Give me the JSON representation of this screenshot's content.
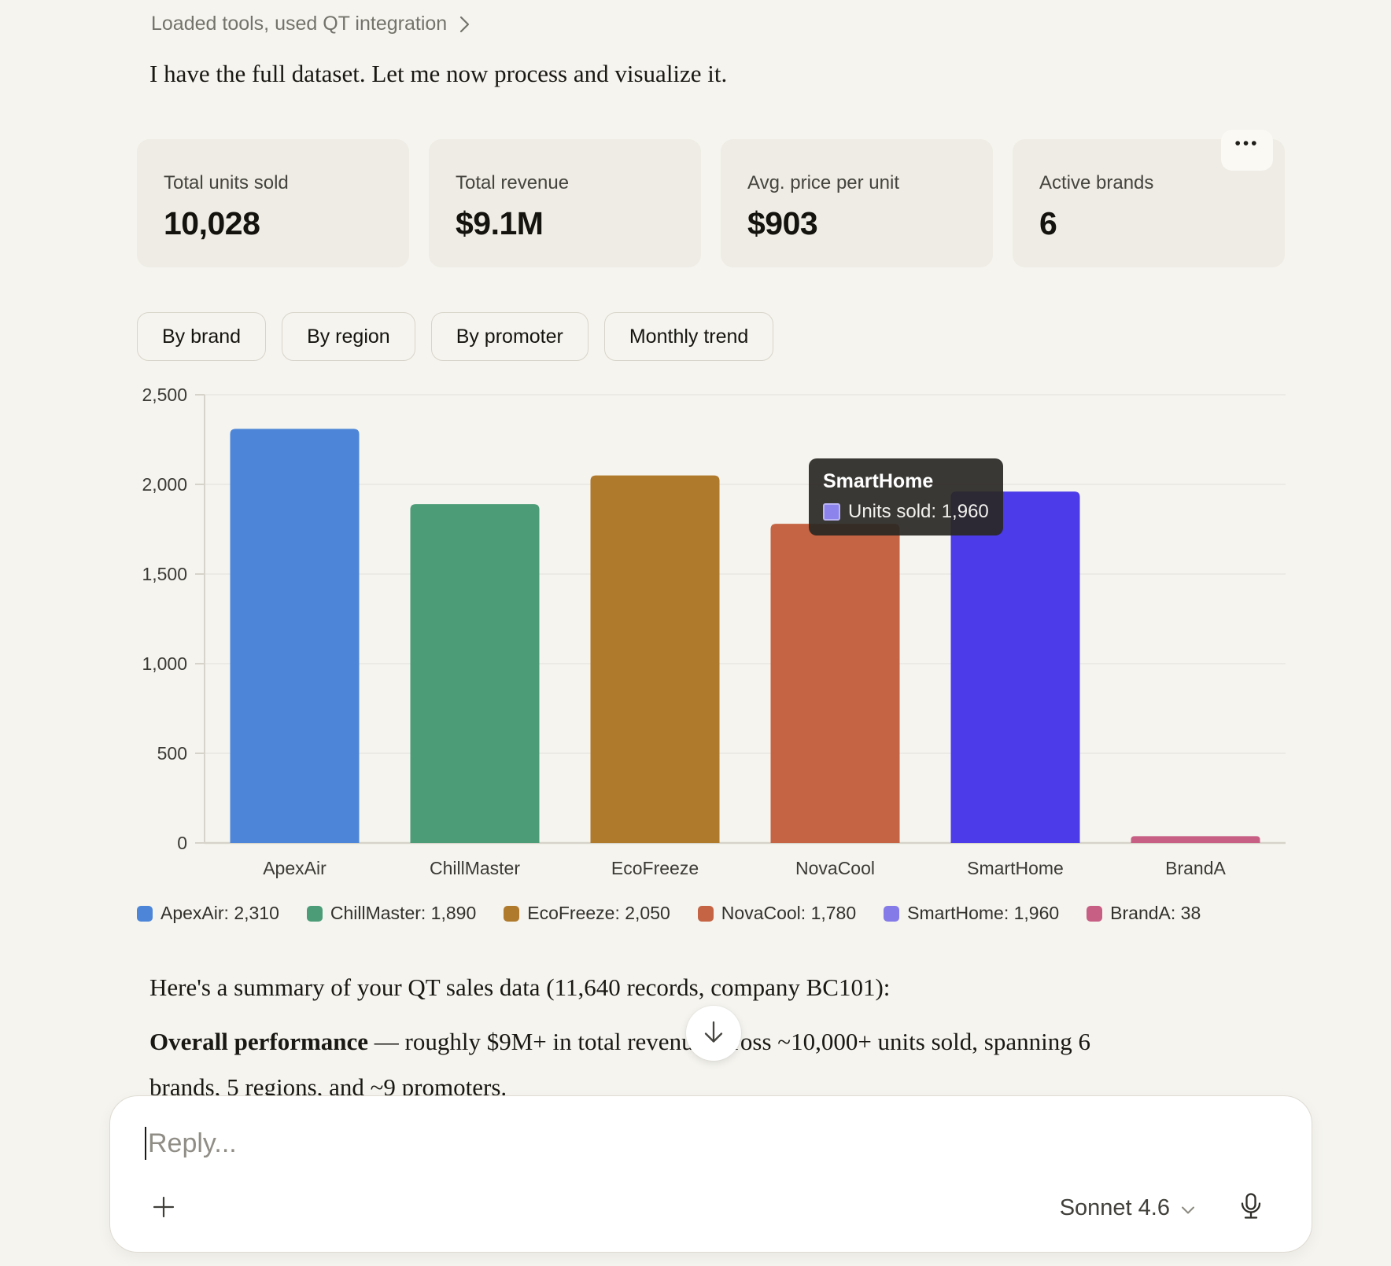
{
  "conversation": {
    "tool_note": "Loaded tools, used QT integration",
    "intro": "I have the full dataset. Let me now process and visualize it.",
    "summary_intro": "Here's a summary of your QT sales data (11,640 records, company BC101):",
    "summary_bold": "Overall performance",
    "summary_rest": " — roughly $9M+ in total revenue across ~10,000+ units sold, spanning 6 brands, 5 regions, and ~9 promoters."
  },
  "stats": [
    {
      "label": "Total units sold",
      "value": "10,028"
    },
    {
      "label": "Total revenue",
      "value": "$9.1M"
    },
    {
      "label": "Avg. price per unit",
      "value": "$903"
    },
    {
      "label": "Active brands",
      "value": "6"
    }
  ],
  "overflow_dots": "•••",
  "tabs": [
    "By brand",
    "By region",
    "By promoter",
    "Monthly trend"
  ],
  "chart_data": {
    "type": "bar",
    "title": "",
    "xlabel": "",
    "ylabel": "",
    "categories": [
      "ApexAir",
      "ChillMaster",
      "EcoFreeze",
      "NovaCool",
      "SmartHome",
      "BrandA"
    ],
    "values": [
      2310,
      1890,
      2050,
      1780,
      1960,
      38
    ],
    "bar_colors": [
      "#4d86d8",
      "#4c9c78",
      "#b07a2d",
      "#c56444",
      "#4b3be8",
      "#c75f85"
    ],
    "ylim": [
      0,
      2500
    ],
    "ytick_step": 500,
    "ytick_labels": [
      "0",
      "500",
      "1,000",
      "1,500",
      "2,000",
      "2,500"
    ],
    "grid": true,
    "legend_position": "bottom",
    "legend": [
      {
        "label": "ApexAir: 2,310",
        "color": "#4d86d8"
      },
      {
        "label": "ChillMaster: 1,890",
        "color": "#4c9c78"
      },
      {
        "label": "EcoFreeze: 2,050",
        "color": "#b07a2d"
      },
      {
        "label": "NovaCool: 1,780",
        "color": "#c56444"
      },
      {
        "label": "SmartHome: 1,960",
        "color": "#857be8"
      },
      {
        "label": "BrandA: 38",
        "color": "#c75f85"
      }
    ]
  },
  "tooltip": {
    "title": "SmartHome",
    "text": "Units sold: 1,960",
    "swatch_color": "#8c84ec"
  },
  "composer": {
    "placeholder": "Reply...",
    "model_label": "Sonnet 4.6"
  }
}
